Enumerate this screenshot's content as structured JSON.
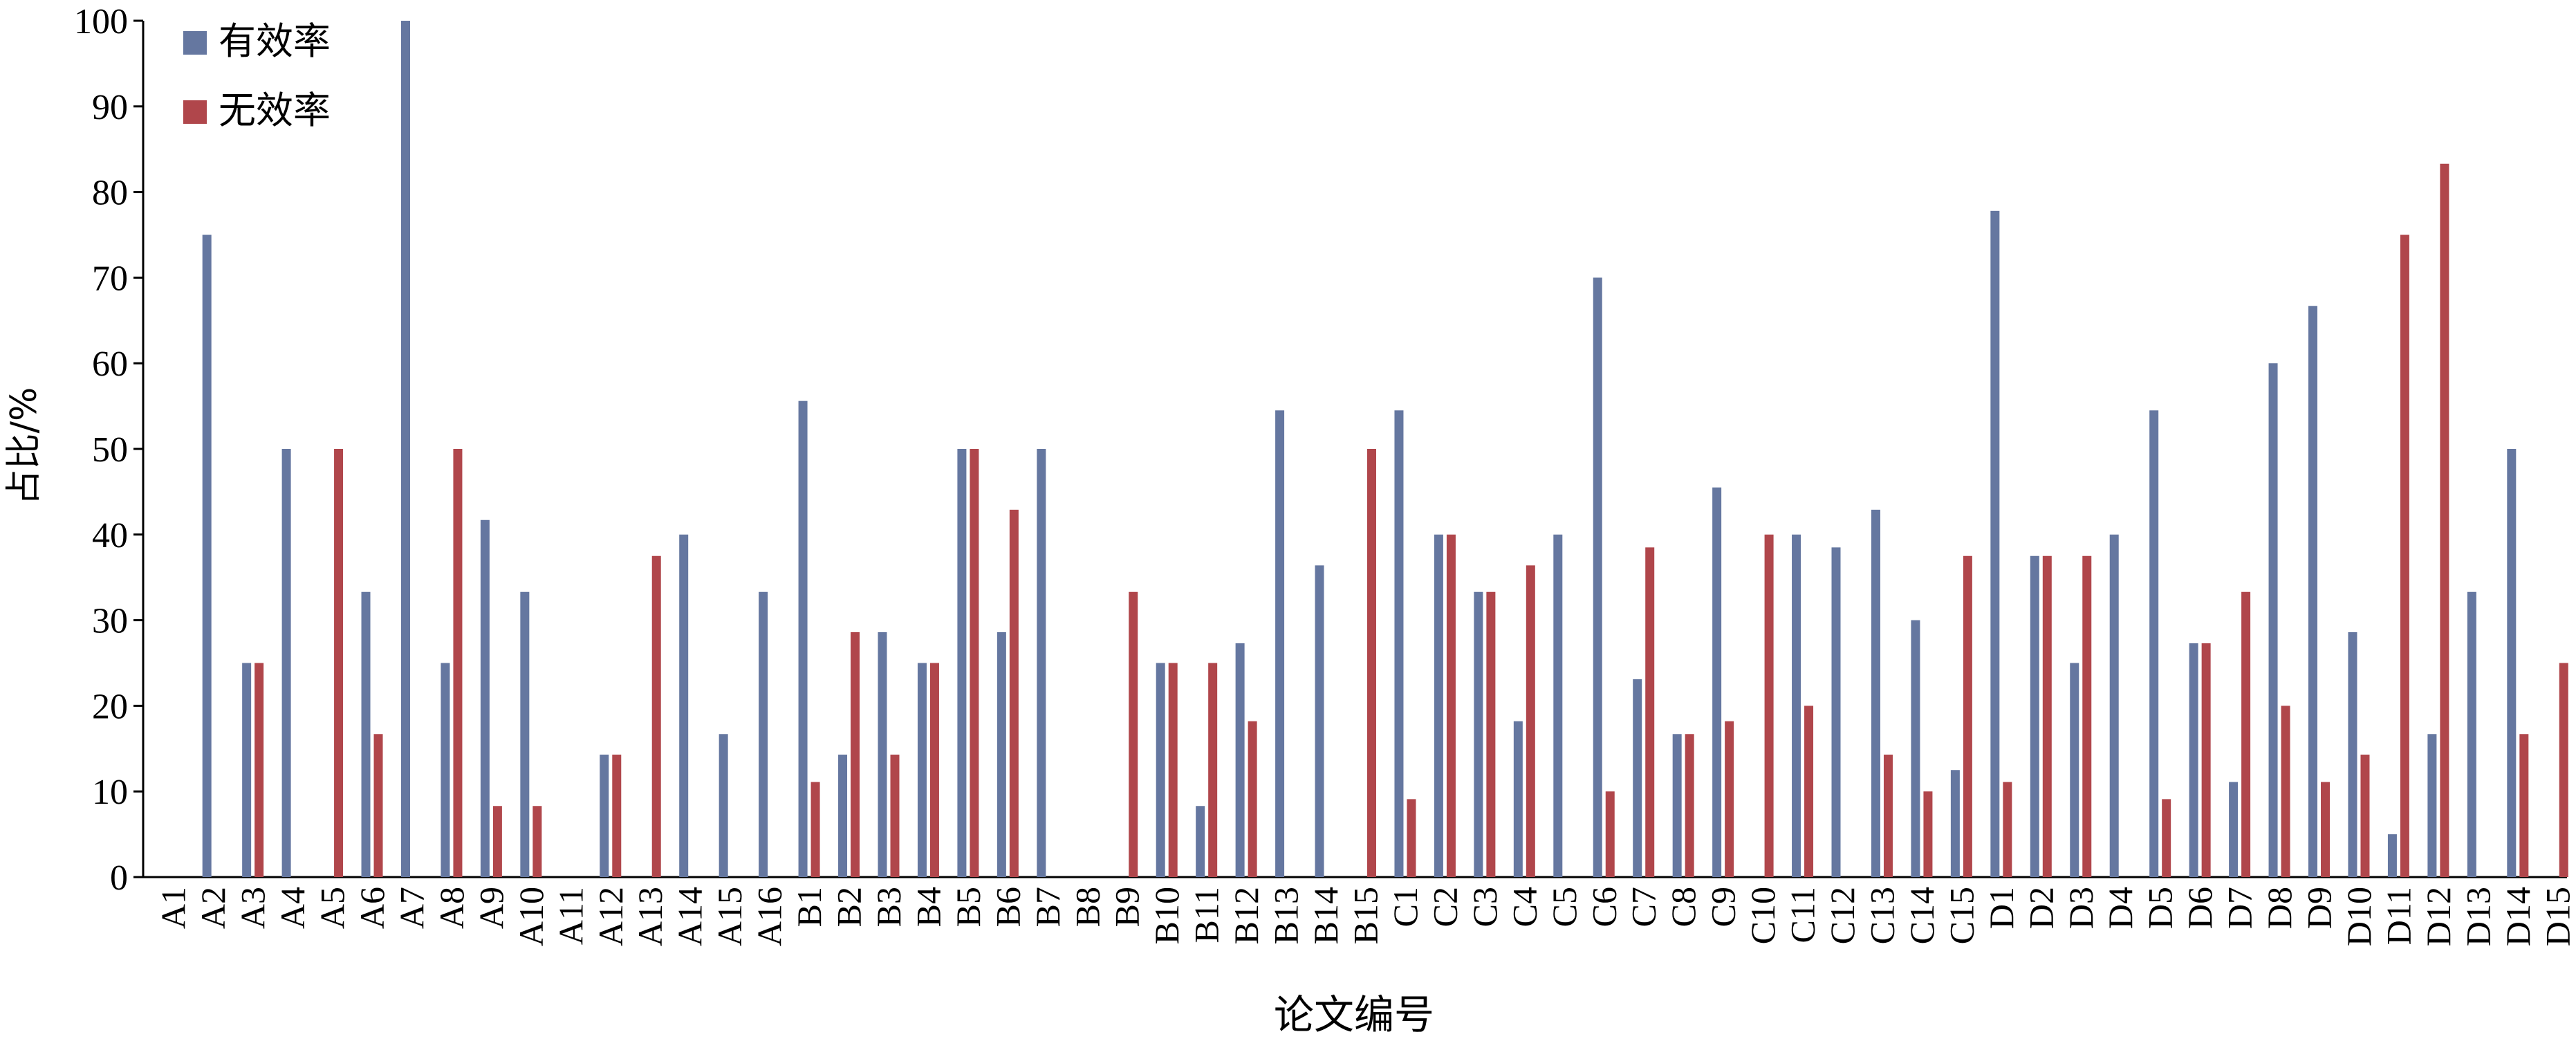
{
  "chart_data": {
    "type": "bar",
    "ylabel": "占比/%",
    "xlabel": "论文编号",
    "ylim": [
      0,
      100
    ],
    "yticks": [
      0,
      10,
      20,
      30,
      40,
      50,
      60,
      70,
      80,
      90,
      100
    ],
    "grid": false,
    "legend_position": "top-left",
    "categories": [
      "A1",
      "A2",
      "A3",
      "A4",
      "A5",
      "A6",
      "A7",
      "A8",
      "A9",
      "A10",
      "A11",
      "A12",
      "A13",
      "A14",
      "A15",
      "A16",
      "B1",
      "B2",
      "B3",
      "B4",
      "B5",
      "B6",
      "B7",
      "B8",
      "B9",
      "B10",
      "B11",
      "B12",
      "B13",
      "B14",
      "B15",
      "C1",
      "C2",
      "C3",
      "C4",
      "C5",
      "C6",
      "C7",
      "C8",
      "C9",
      "C10",
      "C11",
      "C12",
      "C13",
      "C14",
      "C15",
      "D1",
      "D2",
      "D3",
      "D4",
      "D5",
      "D6",
      "D7",
      "D8",
      "D9",
      "D10",
      "D11",
      "D12",
      "D13",
      "D14",
      "D15"
    ],
    "series": [
      {
        "name": "有效率",
        "color": "#6577a0",
        "values": [
          0,
          75,
          25,
          50,
          0,
          33.3,
          100,
          25,
          41.7,
          33.3,
          0,
          14.3,
          0,
          40,
          16.7,
          33.3,
          55.6,
          14.3,
          28.6,
          25,
          50,
          28.6,
          50,
          0,
          0,
          25,
          8.3,
          27.3,
          54.5,
          36.4,
          0,
          54.5,
          40,
          33.3,
          18.2,
          40,
          70,
          23.1,
          16.7,
          45.5,
          0,
          40,
          38.5,
          42.9,
          30,
          12.5,
          77.8,
          37.5,
          25,
          40,
          54.5,
          27.3,
          11.1,
          60,
          66.7,
          28.6,
          5,
          16.7,
          33.3,
          50,
          0
        ]
      },
      {
        "name": "无效率",
        "color": "#b0464b",
        "values": [
          0,
          0,
          25,
          0,
          50,
          16.7,
          0,
          50,
          8.3,
          8.3,
          0,
          14.3,
          37.5,
          0,
          0,
          0,
          11.1,
          28.6,
          14.3,
          25,
          50,
          42.9,
          0,
          0,
          33.3,
          25,
          25,
          18.2,
          0,
          0,
          50,
          9.1,
          40,
          33.3,
          36.4,
          0,
          10,
          38.5,
          16.7,
          18.2,
          40,
          20,
          0,
          14.3,
          10,
          37.5,
          11.1,
          37.5,
          37.5,
          0,
          9.1,
          27.3,
          33.3,
          20,
          11.1,
          14.3,
          75,
          83.3,
          0,
          16.7,
          25
        ]
      }
    ]
  }
}
